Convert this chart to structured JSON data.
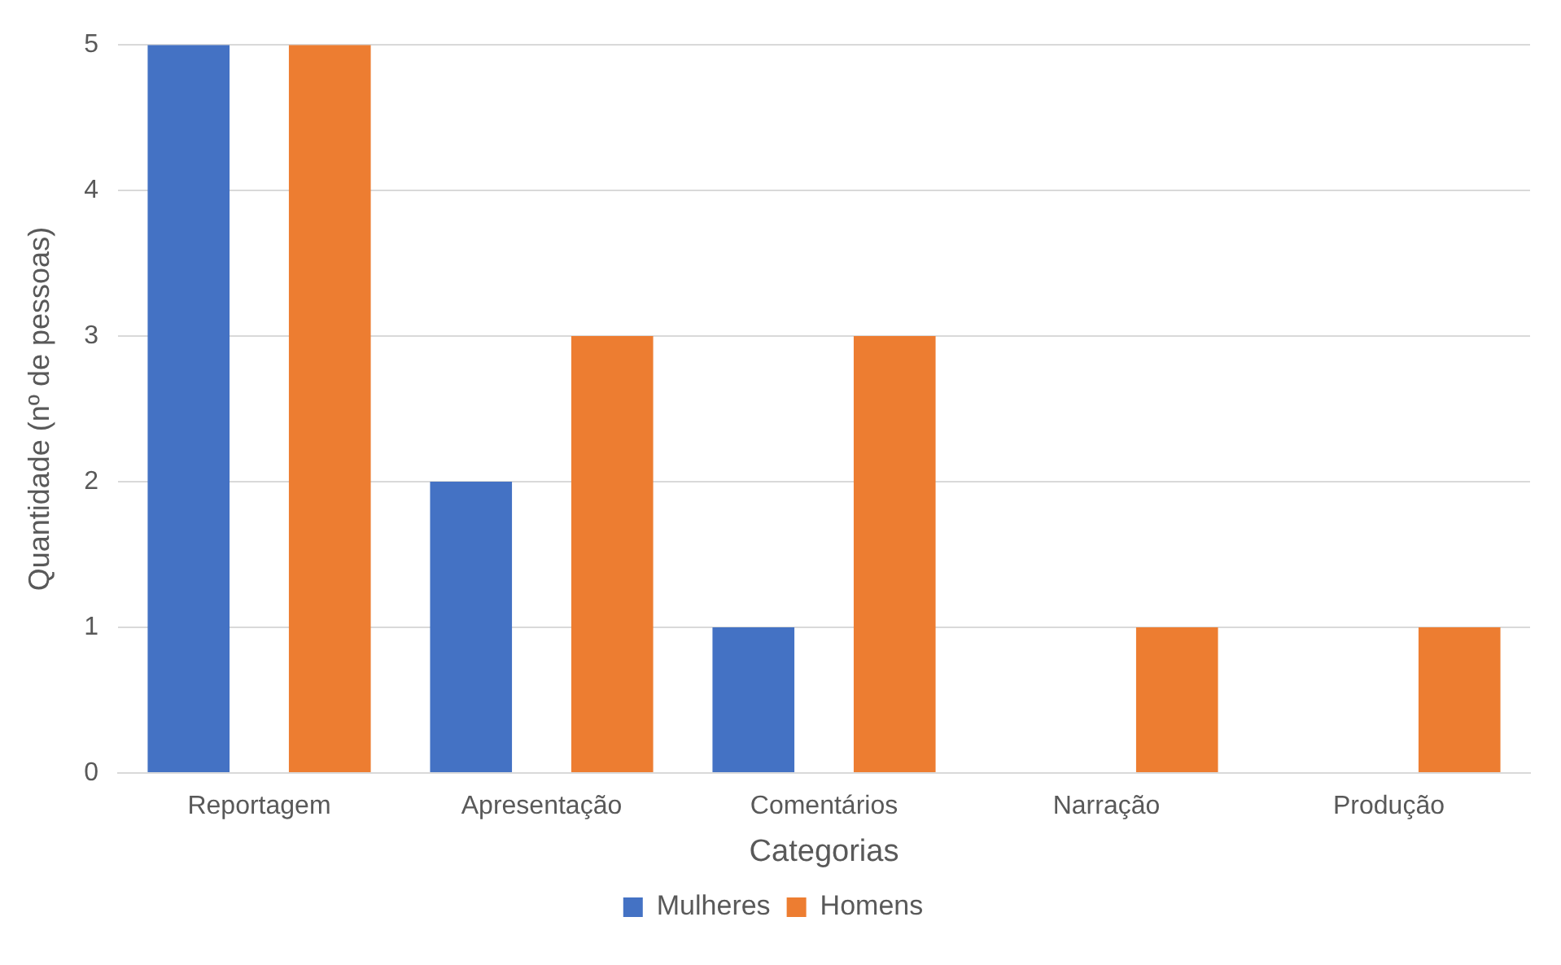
{
  "chart_data": {
    "type": "bar",
    "xlabel": "Categorias",
    "ylabel": "Quantidade (nº de pessoas)",
    "categories": [
      "Reportagem",
      "Apresentação",
      "Comentários",
      "Narração",
      "Produção"
    ],
    "series": [
      {
        "name": "Mulheres",
        "color": "#4472c4",
        "values": [
          5,
          2,
          1,
          0,
          0
        ]
      },
      {
        "name": "Homens",
        "color": "#ed7d31",
        "values": [
          5,
          3,
          3,
          1,
          1
        ]
      }
    ],
    "ylim": [
      0,
      5
    ],
    "yticks": [
      0,
      1,
      2,
      3,
      4,
      5
    ],
    "grid": "y",
    "legend": "bottom"
  }
}
